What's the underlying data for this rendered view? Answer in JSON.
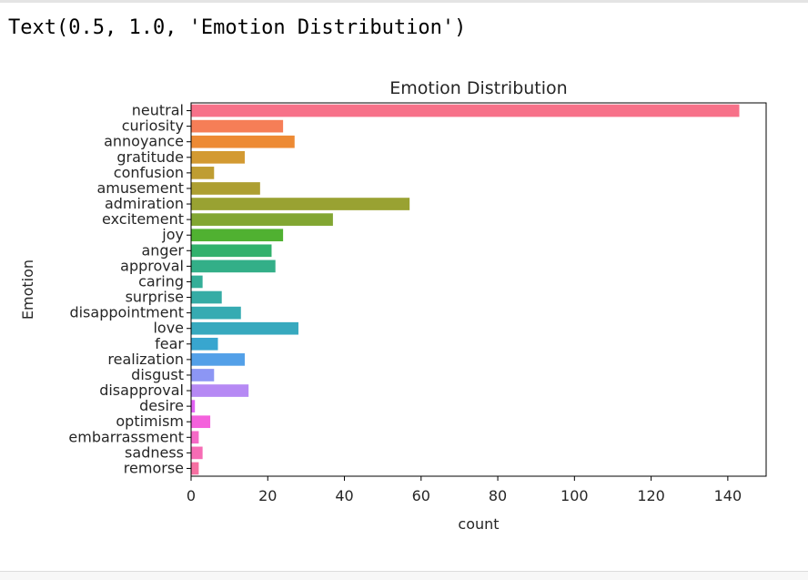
{
  "output_line": "Text(0.5, 1.0, 'Emotion Distribution')",
  "chart_data": {
    "type": "bar",
    "orientation": "horizontal",
    "title": "Emotion Distribution",
    "xlabel": "count",
    "ylabel": "Emotion",
    "xlim": [
      0,
      150
    ],
    "xticks": [
      0,
      20,
      40,
      60,
      80,
      100,
      120,
      140
    ],
    "grid": false,
    "categories": [
      "neutral",
      "curiosity",
      "annoyance",
      "gratitude",
      "confusion",
      "amusement",
      "admiration",
      "excitement",
      "joy",
      "anger",
      "approval",
      "caring",
      "surprise",
      "disappointment",
      "love",
      "fear",
      "realization",
      "disgust",
      "disapproval",
      "desire",
      "optimism",
      "embarrassment",
      "sadness",
      "remorse"
    ],
    "values": [
      143,
      24,
      27,
      14,
      6,
      18,
      57,
      37,
      24,
      21,
      22,
      3,
      8,
      13,
      28,
      7,
      14,
      6,
      15,
      1,
      5,
      2,
      3,
      2
    ],
    "colors": [
      "#f77189",
      "#f67e57",
      "#ed8a34",
      "#d39a32",
      "#bf9d32",
      "#ad9f32",
      "#99a232",
      "#82a632",
      "#50b131",
      "#32b16c",
      "#33af88",
      "#34ae98",
      "#35aca5",
      "#36abb2",
      "#37a9be",
      "#38a6cf",
      "#53a0e8",
      "#8c96f4",
      "#b689f4",
      "#e262f4",
      "#f462dc",
      "#f56ac6",
      "#f66cb4",
      "#f670a2"
    ]
  }
}
